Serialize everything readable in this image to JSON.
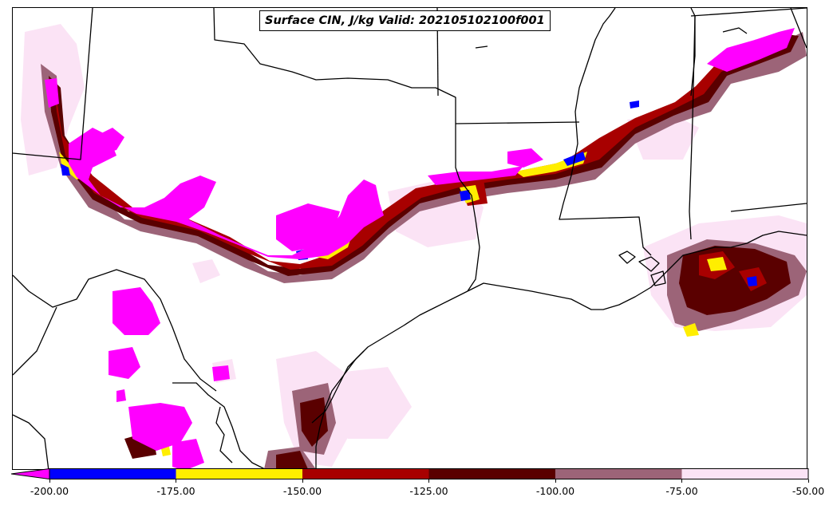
{
  "title": "Surface CIN, J/kg Valid: 202105102100f001",
  "colorbar": {
    "tick_labels": [
      "-200.00",
      "-175.00",
      "-150.00",
      "-125.00",
      "-100.00",
      "-75.00",
      "-50.00"
    ],
    "extend": "min",
    "bins": [
      {
        "from": -225,
        "to": -200,
        "color": "#ff00ff"
      },
      {
        "from": -200,
        "to": -175,
        "color": "#0000ff"
      },
      {
        "from": -175,
        "to": -150,
        "color": "#ffee00"
      },
      {
        "from": -150,
        "to": -125,
        "color": "#a80000"
      },
      {
        "from": -125,
        "to": -100,
        "color": "#5a0000"
      },
      {
        "from": -100,
        "to": -75,
        "color": "#9c6478"
      },
      {
        "from": -75,
        "to": -50,
        "color": "#fbe3f5"
      }
    ]
  },
  "map": {
    "layers": [
      "state-borders",
      "coastline",
      "cin-fill"
    ],
    "field_colors": {
      "lt_-200": "#ff00ff",
      "-200_-175": "#0000ff",
      "-175_-150": "#ffee00",
      "-150_-125": "#a80000",
      "-125_-100": "#5a0000",
      "-100_-75": "#9c6478",
      "-75_-50": "#fbe3f5"
    }
  }
}
